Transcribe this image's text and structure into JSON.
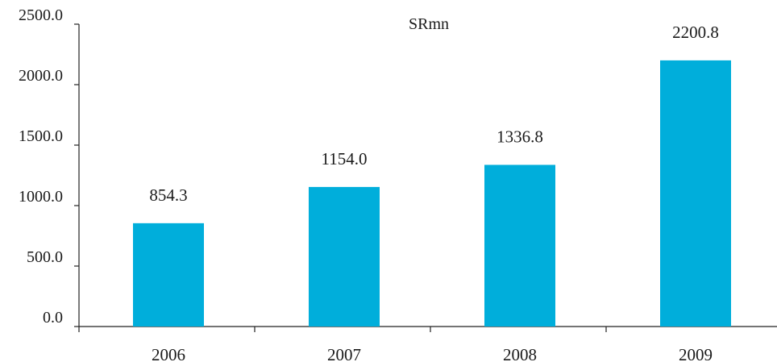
{
  "chart_data": {
    "type": "bar",
    "categories": [
      "2006",
      "2007",
      "2008",
      "2009"
    ],
    "values": [
      854.3,
      1154.0,
      1336.8,
      2200.8
    ],
    "value_labels": [
      "854.3",
      "1154.0",
      "1336.8",
      "2200.8"
    ],
    "unit_label": "SRmn",
    "title": "",
    "xlabel": "",
    "ylabel": "",
    "ylim": [
      0,
      2500
    ],
    "yticks": [
      0,
      500,
      1000,
      1500,
      2000,
      2500
    ],
    "ytick_labels": [
      "0.0",
      "500.0",
      "1000.0",
      "1500.0",
      "2000.0",
      "2500.0"
    ],
    "bar_color": "#00AEDB",
    "grid": false,
    "legend": "none"
  }
}
